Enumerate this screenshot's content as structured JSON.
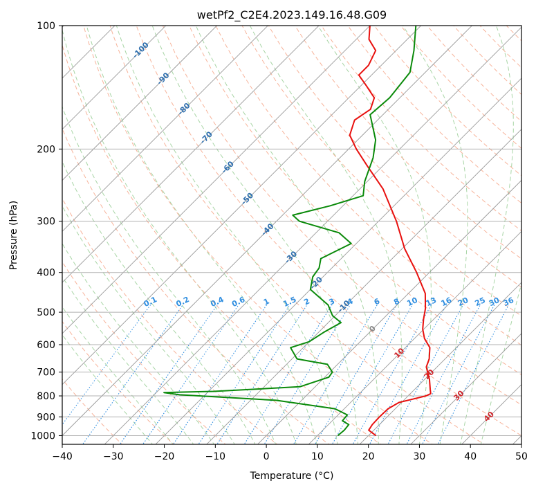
{
  "chart_data": {
    "type": "skew-t",
    "title": "wetPf2_C2E4.2023.149.16.48.G09",
    "xlabel": "Temperature (°C)",
    "ylabel": "Pressure (hPa)",
    "xlim": [
      -40,
      50
    ],
    "ylim_hpa": [
      1050,
      100
    ],
    "grid": true,
    "x_ticks": [
      "−40",
      "−30",
      "−20",
      "−10",
      "0",
      "10",
      "20",
      "30",
      "40",
      "50"
    ],
    "x_tick_values": [
      -40,
      -30,
      -20,
      -10,
      0,
      10,
      20,
      30,
      40,
      50
    ],
    "y_ticks": [
      "100",
      "200",
      "300",
      "400",
      "500",
      "600",
      "700",
      "800",
      "900",
      "1000"
    ],
    "y_tick_values": [
      100,
      200,
      300,
      400,
      500,
      600,
      700,
      800,
      900,
      1000
    ],
    "colors": {
      "temperature": "#e8100e",
      "dewpoint": "#0a8a0a",
      "skewed_isotherm": "#9a9a9a",
      "zero_isotherm_label": "#888888",
      "dry_adiabat": "#f7b39a",
      "moist_adiabat": "#a8d5a5",
      "mixing_ratio": "#2f8ee0",
      "negative_isotherm_label": "#2f6fae",
      "positive_isotherm_label": "#d0242a"
    },
    "series": [
      {
        "role": "temperature",
        "points": [
          {
            "p": 1000,
            "t": 21.5
          },
          {
            "p": 970,
            "t": 19.0
          },
          {
            "p": 940,
            "t": 18.6
          },
          {
            "p": 900,
            "t": 18.5
          },
          {
            "p": 860,
            "t": 18.6
          },
          {
            "p": 830,
            "t": 19.5
          },
          {
            "p": 815,
            "t": 21.5
          },
          {
            "p": 800,
            "t": 23.5
          },
          {
            "p": 790,
            "t": 24.0
          },
          {
            "p": 770,
            "t": 23.0
          },
          {
            "p": 730,
            "t": 21.0
          },
          {
            "p": 680,
            "t": 17.9
          },
          {
            "p": 650,
            "t": 16.9
          },
          {
            "p": 610,
            "t": 14.8
          },
          {
            "p": 580,
            "t": 12.0
          },
          {
            "p": 550,
            "t": 9.8
          },
          {
            "p": 520,
            "t": 8.0
          },
          {
            "p": 490,
            "t": 6.3
          },
          {
            "p": 450,
            "t": 3.3
          },
          {
            "p": 400,
            "t": -2.5
          },
          {
            "p": 350,
            "t": -9.5
          },
          {
            "p": 300,
            "t": -16.5
          },
          {
            "p": 250,
            "t": -25.5
          },
          {
            "p": 220,
            "t": -33.0
          },
          {
            "p": 200,
            "t": -38.5
          },
          {
            "p": 185,
            "t": -42.5
          },
          {
            "p": 170,
            "t": -44.5
          },
          {
            "p": 160,
            "t": -43.5
          },
          {
            "p": 150,
            "t": -45.0
          },
          {
            "p": 140,
            "t": -49.0
          },
          {
            "p": 132,
            "t": -52.5
          },
          {
            "p": 125,
            "t": -52.5
          },
          {
            "p": 115,
            "t": -54.0
          },
          {
            "p": 108,
            "t": -57.5
          },
          {
            "p": 100,
            "t": -60.0
          }
        ]
      },
      {
        "role": "dewpoint",
        "points": [
          {
            "p": 1000,
            "t": 14.0
          },
          {
            "p": 970,
            "t": 14.2
          },
          {
            "p": 940,
            "t": 14.0
          },
          {
            "p": 920,
            "t": 12.0
          },
          {
            "p": 890,
            "t": 11.8
          },
          {
            "p": 860,
            "t": 8.2
          },
          {
            "p": 820,
            "t": -5.0
          },
          {
            "p": 795,
            "t": -25.0
          },
          {
            "p": 785,
            "t": -28.5
          },
          {
            "p": 780,
            "t": -19.0
          },
          {
            "p": 760,
            "t": -3.0
          },
          {
            "p": 720,
            "t": 0.8
          },
          {
            "p": 700,
            "t": 0.5
          },
          {
            "p": 670,
            "t": -2.0
          },
          {
            "p": 650,
            "t": -9.0
          },
          {
            "p": 610,
            "t": -12.5
          },
          {
            "p": 590,
            "t": -10.0
          },
          {
            "p": 560,
            "t": -9.0
          },
          {
            "p": 530,
            "t": -7.5
          },
          {
            "p": 510,
            "t": -10.5
          },
          {
            "p": 480,
            "t": -13.5
          },
          {
            "p": 440,
            "t": -20.0
          },
          {
            "p": 410,
            "t": -22.0
          },
          {
            "p": 390,
            "t": -22.5
          },
          {
            "p": 370,
            "t": -24.0
          },
          {
            "p": 340,
            "t": -21.0
          },
          {
            "p": 320,
            "t": -25.5
          },
          {
            "p": 300,
            "t": -35.5
          },
          {
            "p": 290,
            "t": -38.0
          },
          {
            "p": 275,
            "t": -32.5
          },
          {
            "p": 260,
            "t": -28.0
          },
          {
            "p": 240,
            "t": -30.5
          },
          {
            "p": 210,
            "t": -33.5
          },
          {
            "p": 190,
            "t": -36.5
          },
          {
            "p": 175,
            "t": -40.0
          },
          {
            "p": 165,
            "t": -42.5
          },
          {
            "p": 150,
            "t": -42.0
          },
          {
            "p": 130,
            "t": -43.0
          },
          {
            "p": 115,
            "t": -46.5
          },
          {
            "p": 100,
            "t": -51.0
          }
        ]
      }
    ],
    "isotherm_labels": {
      "negative": [
        {
          "text": "-100",
          "p": 115
        },
        {
          "text": "-90",
          "p": 135
        },
        {
          "text": "-80",
          "p": 160
        },
        {
          "text": "-70",
          "p": 188
        },
        {
          "text": "-60",
          "p": 222
        },
        {
          "text": "-50",
          "p": 265
        },
        {
          "text": "-40",
          "p": 315
        },
        {
          "text": "-30",
          "p": 368
        },
        {
          "text": "-20",
          "p": 425
        },
        {
          "text": "-10",
          "p": 485
        }
      ],
      "zero": [
        {
          "text": "0",
          "p": 550
        }
      ],
      "positive": [
        {
          "text": "10",
          "p": 630
        },
        {
          "text": "20",
          "p": 710
        },
        {
          "text": "30",
          "p": 800
        },
        {
          "text": "40",
          "p": 900
        }
      ]
    },
    "mixing_ratio_lines_gkg": [
      0.1,
      0.2,
      0.4,
      0.6,
      1,
      1.5,
      2,
      3,
      4,
      6,
      8,
      10,
      13,
      16,
      20,
      25,
      30,
      36
    ],
    "mixing_ratio_labels": [
      "0.1",
      "0.2",
      "0.4",
      "0.6",
      "1",
      "1.5",
      "2",
      "3",
      "4",
      "6",
      "8",
      "10",
      "13",
      "16",
      "20",
      "25",
      "30",
      "36"
    ],
    "mixing_ratio_label_pressure": 480
  }
}
